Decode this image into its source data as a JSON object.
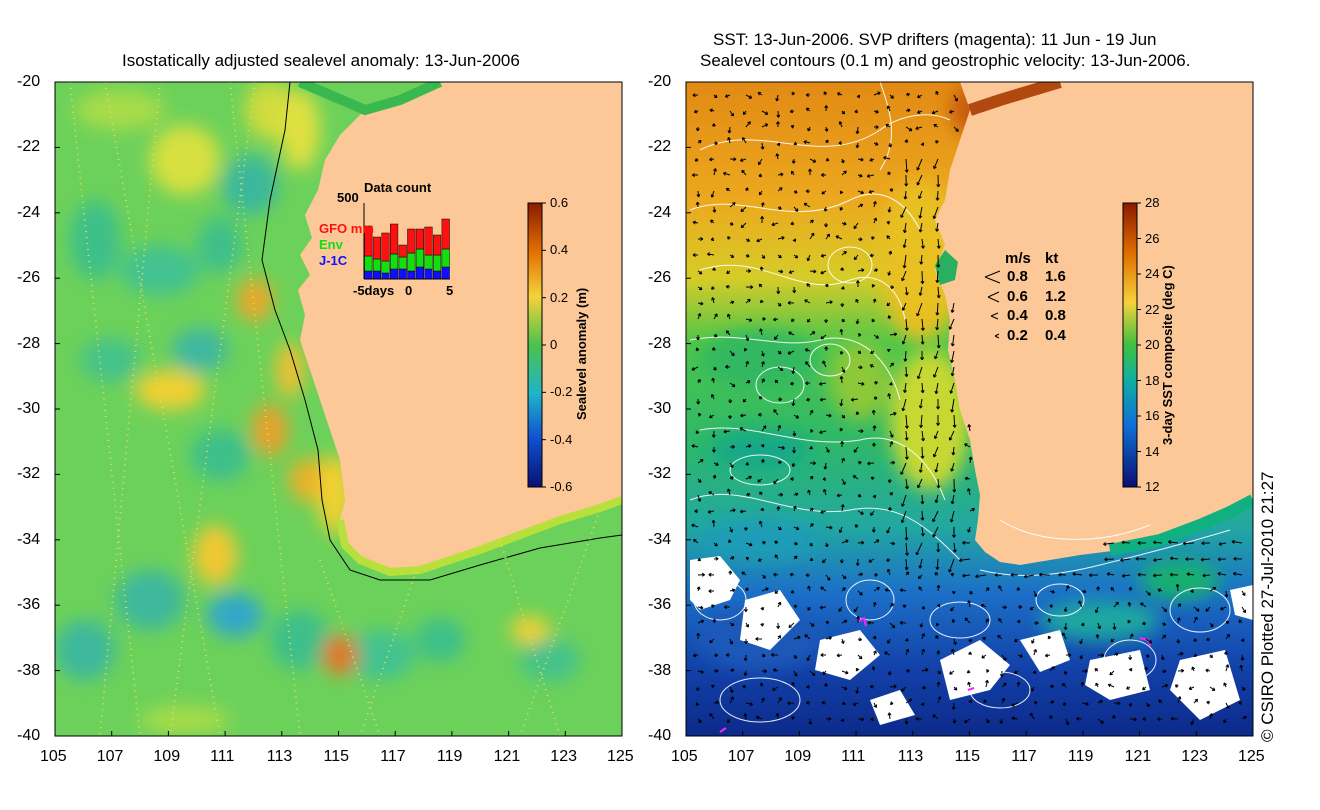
{
  "left_panel": {
    "title": "Isostatically adjusted sealevel anomaly: 13-Jun-2006",
    "y_ticks": [
      "-20",
      "-22",
      "-24",
      "-26",
      "-28",
      "-30",
      "-32",
      "-34",
      "-36",
      "-38",
      "-40"
    ],
    "x_ticks": [
      "105",
      "107",
      "109",
      "111",
      "113",
      "115",
      "117",
      "119",
      "121",
      "123",
      "125"
    ],
    "colorbar": {
      "label": "Sealevel anomaly (m)",
      "ticks": [
        "0.6",
        "0.4",
        "0.2",
        "0",
        "-0.2",
        "-0.4",
        "-0.6"
      ]
    },
    "inset": {
      "max_label": "500",
      "title": "Data count",
      "legend": [
        {
          "label": "GFO mm",
          "color": "#ff1010"
        },
        {
          "label": "Env",
          "color": "#10e010"
        },
        {
          "label": "J-1C",
          "color": "#1010ff"
        }
      ],
      "x_axis": [
        "-5days",
        "0",
        "5"
      ]
    }
  },
  "right_panel": {
    "title_line1": "SST: 13-Jun-2006. SVP drifters (magenta): 11 Jun - 19 Jun",
    "title_line2": "Sealevel contours (0.1 m) and geostrophic velocity: 13-Jun-2006.",
    "y_ticks": [
      "-20",
      "-22",
      "-24",
      "-26",
      "-28",
      "-30",
      "-32",
      "-34",
      "-36",
      "-38",
      "-40"
    ],
    "x_ticks": [
      "105",
      "107",
      "109",
      "111",
      "113",
      "115",
      "117",
      "119",
      "121",
      "123",
      "125"
    ],
    "colorbar": {
      "label": "3-day SST composite (deg C)",
      "ticks": [
        "28",
        "26",
        "24",
        "22",
        "20",
        "18",
        "16",
        "14",
        "12"
      ]
    },
    "velocity_legend": {
      "header_ms": "m/s",
      "header_kt": "kt",
      "rows": [
        {
          "ms": "0.8",
          "kt": "1.6"
        },
        {
          "ms": "0.6",
          "kt": "1.2"
        },
        {
          "ms": "0.4",
          "kt": "0.8"
        },
        {
          "ms": "0.2",
          "kt": "0.4"
        }
      ]
    }
  },
  "credit": "© CSIRO Plotted 27-Jul-2010 21:27",
  "colors": {
    "land": "#fcc898",
    "anomaly_base": "#6cd15a",
    "sst_warm": "#e8a01e",
    "sst_cool": "#0d3aa8"
  }
}
